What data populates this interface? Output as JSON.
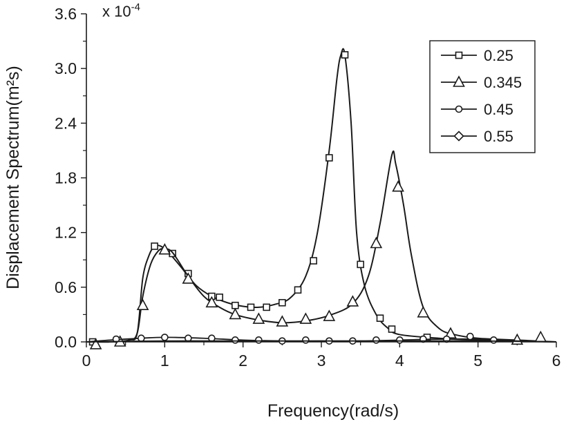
{
  "chart_data": {
    "type": "line",
    "xlabel": "Frequency(rad/s)",
    "ylabel": "Displacement Spectrum(m²s)",
    "y_exponent_label": "x 10",
    "y_exponent_power": "-4",
    "xlim": [
      0,
      6
    ],
    "ylim": [
      0,
      3.6
    ],
    "x_ticks": [
      "0",
      "1",
      "2",
      "3",
      "4",
      "5",
      "6"
    ],
    "y_ticks": [
      "0.0",
      "0.6",
      "1.2",
      "1.8",
      "2.4",
      "3.0",
      "3.6"
    ],
    "grid": false,
    "legend_position": "top-right",
    "series": [
      {
        "name": "0.25",
        "marker": "square",
        "curve": [
          [
            0,
            0.0
          ],
          [
            0.3,
            0.0
          ],
          [
            0.55,
            0.02
          ],
          [
            0.65,
            0.1
          ],
          [
            0.72,
            0.7
          ],
          [
            0.8,
            0.95
          ],
          [
            0.87,
            1.05
          ],
          [
            0.95,
            1.05
          ],
          [
            1.05,
            0.98
          ],
          [
            1.2,
            0.83
          ],
          [
            1.4,
            0.62
          ],
          [
            1.6,
            0.5
          ],
          [
            1.8,
            0.43
          ],
          [
            2.0,
            0.39
          ],
          [
            2.2,
            0.38
          ],
          [
            2.4,
            0.41
          ],
          [
            2.6,
            0.48
          ],
          [
            2.8,
            0.72
          ],
          [
            2.95,
            1.2
          ],
          [
            3.1,
            2.1
          ],
          [
            3.2,
            2.9
          ],
          [
            3.25,
            3.15
          ],
          [
            3.3,
            3.15
          ],
          [
            3.38,
            2.4
          ],
          [
            3.45,
            1.2
          ],
          [
            3.55,
            0.62
          ],
          [
            3.7,
            0.3
          ],
          [
            3.85,
            0.15
          ],
          [
            4.0,
            0.08
          ],
          [
            4.5,
            0.04
          ],
          [
            5.0,
            0.02
          ],
          [
            5.5,
            0.01
          ],
          [
            6.0,
            0.0
          ]
        ],
        "markers": [
          [
            0.08,
            0.0
          ],
          [
            0.87,
            1.05
          ],
          [
            1.1,
            0.97
          ],
          [
            1.3,
            0.75
          ],
          [
            1.6,
            0.5
          ],
          [
            1.7,
            0.49
          ],
          [
            1.9,
            0.4
          ],
          [
            2.1,
            0.38
          ],
          [
            2.3,
            0.38
          ],
          [
            2.5,
            0.43
          ],
          [
            2.7,
            0.57
          ],
          [
            2.9,
            0.89
          ],
          [
            3.1,
            2.02
          ],
          [
            3.3,
            3.15
          ],
          [
            3.5,
            0.85
          ],
          [
            3.75,
            0.26
          ],
          [
            3.9,
            0.14
          ],
          [
            4.35,
            0.05
          ]
        ]
      },
      {
        "name": "0.345",
        "marker": "triangle",
        "curve": [
          [
            0,
            0.0
          ],
          [
            0.3,
            0.0
          ],
          [
            0.55,
            0.02
          ],
          [
            0.65,
            0.1
          ],
          [
            0.72,
            0.5
          ],
          [
            0.82,
            0.85
          ],
          [
            0.92,
            1.0
          ],
          [
            1.0,
            1.02
          ],
          [
            1.1,
            0.98
          ],
          [
            1.3,
            0.72
          ],
          [
            1.5,
            0.5
          ],
          [
            1.7,
            0.38
          ],
          [
            1.9,
            0.3
          ],
          [
            2.2,
            0.24
          ],
          [
            2.5,
            0.21
          ],
          [
            2.8,
            0.23
          ],
          [
            3.1,
            0.29
          ],
          [
            3.4,
            0.42
          ],
          [
            3.6,
            0.72
          ],
          [
            3.75,
            1.3
          ],
          [
            3.9,
            2.05
          ],
          [
            3.95,
            1.95
          ],
          [
            4.05,
            1.5
          ],
          [
            4.15,
            0.95
          ],
          [
            4.3,
            0.38
          ],
          [
            4.5,
            0.15
          ],
          [
            4.7,
            0.08
          ],
          [
            5.0,
            0.04
          ],
          [
            5.5,
            0.02
          ],
          [
            6.0,
            0.0
          ]
        ],
        "markers": [
          [
            0.12,
            -0.03
          ],
          [
            0.43,
            0.0
          ],
          [
            0.72,
            0.4
          ],
          [
            1.0,
            1.01
          ],
          [
            1.3,
            0.69
          ],
          [
            1.6,
            0.43
          ],
          [
            1.9,
            0.3
          ],
          [
            2.2,
            0.25
          ],
          [
            2.5,
            0.22
          ],
          [
            2.8,
            0.25
          ],
          [
            3.1,
            0.28
          ],
          [
            3.4,
            0.44
          ],
          [
            3.7,
            1.08
          ],
          [
            3.98,
            1.7
          ],
          [
            4.3,
            0.32
          ],
          [
            4.65,
            0.09
          ],
          [
            5.5,
            0.02
          ],
          [
            5.8,
            0.05
          ]
        ]
      },
      {
        "name": "0.45",
        "marker": "circle",
        "curve": [
          [
            0,
            0.0
          ],
          [
            0.3,
            0.02
          ],
          [
            0.7,
            0.04
          ],
          [
            1.0,
            0.05
          ],
          [
            1.5,
            0.04
          ],
          [
            2.0,
            0.02
          ],
          [
            2.5,
            0.01
          ],
          [
            3.0,
            0.01
          ],
          [
            3.5,
            0.01
          ],
          [
            4.0,
            0.02
          ],
          [
            4.5,
            0.03
          ],
          [
            5.0,
            0.03
          ],
          [
            5.5,
            0.01
          ],
          [
            6.0,
            0.0
          ]
        ],
        "markers": [
          [
            0.38,
            0.03
          ],
          [
            0.7,
            0.04
          ],
          [
            1.0,
            0.05
          ],
          [
            1.3,
            0.04
          ],
          [
            1.6,
            0.04
          ],
          [
            1.9,
            0.02
          ],
          [
            2.2,
            0.02
          ],
          [
            2.5,
            0.01
          ],
          [
            2.8,
            0.02
          ],
          [
            3.1,
            0.01
          ],
          [
            3.4,
            0.01
          ],
          [
            3.7,
            0.02
          ],
          [
            4.0,
            0.02
          ],
          [
            4.3,
            0.03
          ],
          [
            4.6,
            0.03
          ],
          [
            4.9,
            0.06
          ],
          [
            5.2,
            0.02
          ]
        ]
      },
      {
        "name": "0.55",
        "marker": "diamond",
        "curve": [
          [
            0,
            0.0
          ],
          [
            1.0,
            0.01
          ],
          [
            2.0,
            0.01
          ],
          [
            3.0,
            0.01
          ],
          [
            4.0,
            0.01
          ],
          [
            5.0,
            0.01
          ],
          [
            6.0,
            0.0
          ]
        ],
        "markers": []
      }
    ]
  }
}
